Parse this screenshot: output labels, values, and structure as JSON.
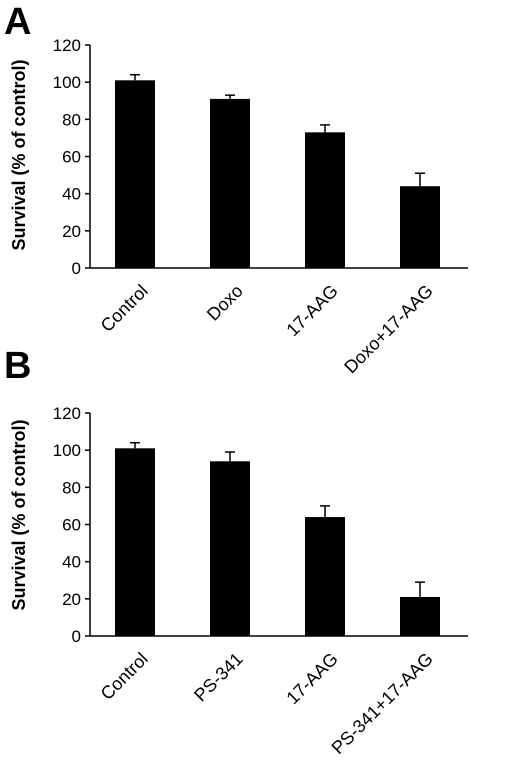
{
  "chart_data": [
    {
      "type": "bar",
      "panel_label": "A",
      "categories": [
        "Control",
        "Doxo",
        "17-AAG",
        "Doxo+17-AAG"
      ],
      "values": [
        101,
        91,
        73,
        44
      ],
      "errors": [
        3,
        2,
        4,
        7
      ],
      "ylabel": "Survival (% of control)",
      "ylim": [
        0,
        120
      ],
      "yticks": [
        0,
        20,
        40,
        60,
        80,
        100,
        120
      ],
      "bar_color": "#000000"
    },
    {
      "type": "bar",
      "panel_label": "B",
      "categories": [
        "Control",
        "PS-341",
        "17-AAG",
        "PS-341+17-AAG"
      ],
      "values": [
        101,
        94,
        64,
        21
      ],
      "errors": [
        3,
        5,
        6,
        8
      ],
      "ylabel": "Survival (% of control)",
      "ylim": [
        0,
        120
      ],
      "yticks": [
        0,
        20,
        40,
        60,
        80,
        100,
        120
      ],
      "bar_color": "#000000"
    }
  ]
}
